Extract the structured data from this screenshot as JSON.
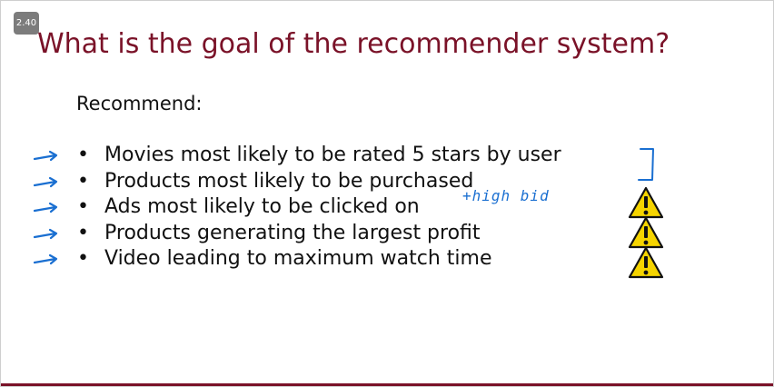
{
  "badge": "2.40",
  "title": "What is the goal of the recommender system?",
  "subhead": "Recommend:",
  "bullets": [
    {
      "text": "Movies most likely to be rated 5 stars by user"
    },
    {
      "text": "Products most likely to be purchased"
    },
    {
      "text": "Ads most likely to be clicked on"
    },
    {
      "text": "Products generating the largest profit"
    },
    {
      "text": "Video leading to maximum watch time"
    }
  ],
  "annotation": "+high bid",
  "colors": {
    "title": "#7a1228",
    "handwriting": "#1a6fd1",
    "warning": "#f5d400"
  },
  "icons": {
    "arrow": "arrow-right-icon",
    "bracket": "bracket-icon",
    "warning": "warning-icon"
  }
}
